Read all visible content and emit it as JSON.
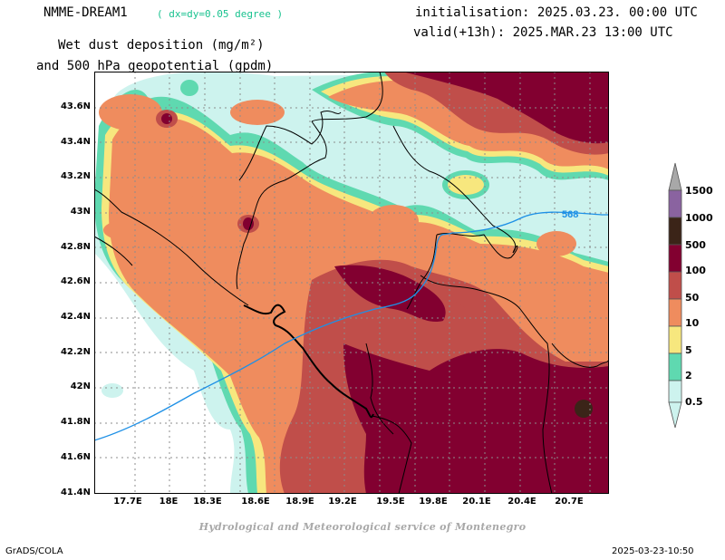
{
  "header": {
    "model_name": "NMME-DREAM1",
    "model_grid": "( dx=dy=0.05 degree )",
    "init_line": "initialisation: 2025.03.23. 00:00 UTC",
    "valid_line": "valid(+13h): 2025.MAR.23 13:00 UTC",
    "title_line1": "Wet dust deposition (mg/m²)",
    "title_line2": "and 500 hPa geopotential (gpdm)"
  },
  "map": {
    "lat_labels": [
      "43.6N",
      "43.4N",
      "43.2N",
      "43N",
      "42.8N",
      "42.6N",
      "42.4N",
      "42.2N",
      "42N",
      "41.8N",
      "41.6N",
      "41.4N"
    ],
    "lon_labels": [
      "17.7E",
      "18E",
      "18.3E",
      "18.6E",
      "18.9E",
      "19.2E",
      "19.5E",
      "19.8E",
      "20.1E",
      "20.4E",
      "20.7E"
    ],
    "contour_label": "568",
    "contour_color": "#1e90e6"
  },
  "legend": {
    "levels": [
      "0.5",
      "2",
      "5",
      "10",
      "50",
      "100",
      "500",
      "1000",
      "1500"
    ],
    "colors": [
      "#cdf3ee",
      "#5fd9b0",
      "#f7e77e",
      "#ef8c5e",
      "#c04e4a",
      "#820030",
      "#3b2418",
      "#8a63a0",
      "#a8a8a8"
    ]
  },
  "footer": {
    "credit": "Hydrological and Meteorological service of Montenegro",
    "software": "GrADS/COLA",
    "timestamp": "2025-03-23-10:50"
  }
}
